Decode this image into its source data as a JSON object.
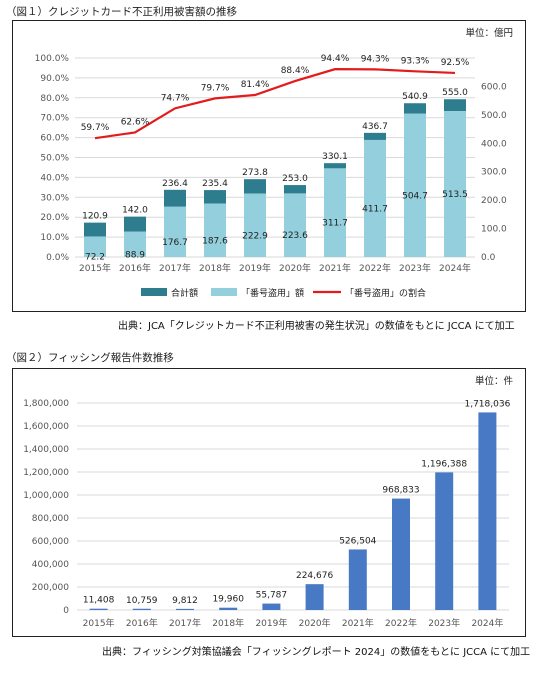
{
  "figures": [
    {
      "title": "（図１）クレジットカード不正利用被害額の推移",
      "unit": "単位：億円",
      "source": "出典：JCA「クレジットカード不正利用被害の発生状況」の数値をもとに JCCA にて加工"
    },
    {
      "title": "（図２）フィッシング報告件数推移",
      "unit": "単位：件",
      "source": "出典：フィッシング対策協議会「フィッシングレポート 2024」の数値をもとに JCCA にて加工"
    }
  ],
  "colors": {
    "total": "#2e7d8f",
    "theft": "#93cfdc",
    "ratio": "#e31b1b",
    "bar2": "#4779c4"
  },
  "chart_data": [
    {
      "type": "bar",
      "stacked": true,
      "categories": [
        "2015年",
        "2016年",
        "2017年",
        "2018年",
        "2019年",
        "2020年",
        "2021年",
        "2022年",
        "2023年",
        "2024年"
      ],
      "series": [
        {
          "name": "合計額",
          "axis": "right",
          "values": [
            120.9,
            142.0,
            236.4,
            235.4,
            273.8,
            253.0,
            330.1,
            436.7,
            540.9,
            555.0
          ],
          "labels": [
            "120.9",
            "142.0",
            "236.4",
            "235.4",
            "273.8",
            "253.0",
            "330.1",
            "436.7",
            "540.9",
            "555.0"
          ]
        },
        {
          "name": "「番号盗用」額",
          "axis": "right",
          "values": [
            72.2,
            88.9,
            176.7,
            187.6,
            222.9,
            223.6,
            311.7,
            411.7,
            504.7,
            513.5
          ],
          "labels": [
            "72.2",
            "88.9",
            "176.7",
            "187.6",
            "222.9",
            "223.6",
            "311.7",
            "411.7",
            "504.7",
            "513.5"
          ]
        },
        {
          "name": "「番号盗用」の割合",
          "type": "line",
          "axis": "left",
          "values": [
            59.7,
            62.6,
            74.7,
            79.7,
            81.4,
            88.4,
            94.4,
            94.3,
            93.3,
            92.5
          ],
          "labels": [
            "59.7%",
            "62.6%",
            "74.7%",
            "79.7%",
            "81.4%",
            "88.4%",
            "94.4%",
            "94.3%",
            "93.3%",
            "92.5%"
          ]
        }
      ],
      "y_left": {
        "ylim": [
          0,
          100
        ],
        "ticks": [
          "0.0%",
          "10.0%",
          "20.0%",
          "30.0%",
          "40.0%",
          "50.0%",
          "60.0%",
          "70.0%",
          "80.0%",
          "90.0%",
          "100.0%"
        ]
      },
      "y_right": {
        "ylim": [
          0,
          700
        ],
        "ticks": [
          "0.0",
          "100.0",
          "200.0",
          "300.0",
          "400.0",
          "500.0",
          "600.0"
        ]
      },
      "grid": true,
      "legend": "bottom"
    },
    {
      "type": "bar",
      "categories": [
        "2015年",
        "2016年",
        "2017年",
        "2018年",
        "2019年",
        "2020年",
        "2021年",
        "2022年",
        "2023年",
        "2024年"
      ],
      "values": [
        11408,
        10759,
        9812,
        19960,
        55787,
        224676,
        526504,
        968833,
        1196388,
        1718036
      ],
      "labels": [
        "11,408",
        "10,759",
        "9,812",
        "19,960",
        "55,787",
        "224,676",
        "526,504",
        "968,833",
        "1,196,388",
        "1,718,036"
      ],
      "ylim": [
        0,
        1800000
      ],
      "ticks": [
        "0",
        "200,000",
        "400,000",
        "600,000",
        "800,000",
        "1,000,000",
        "1,200,000",
        "1,400,000",
        "1,600,000",
        "1,800,000"
      ],
      "grid": true
    }
  ]
}
